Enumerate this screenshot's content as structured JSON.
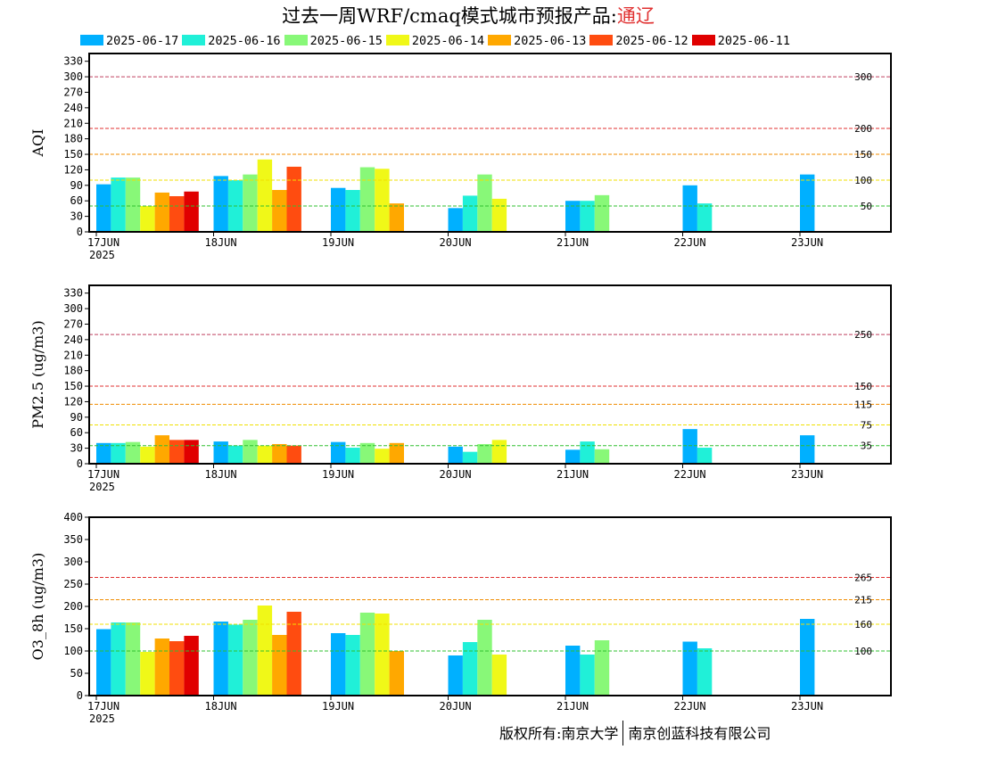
{
  "title": {
    "main": "过去一周WRF/cmaq模式城市预报产品:",
    "city": "通辽"
  },
  "legend": [
    {
      "label": "2025-06-17",
      "color": "#00b0ff"
    },
    {
      "label": "2025-06-16",
      "color": "#20f0d8"
    },
    {
      "label": "2025-06-15",
      "color": "#88f878"
    },
    {
      "label": "2025-06-14",
      "color": "#f0f818"
    },
    {
      "label": "2025-06-13",
      "color": "#ffa800"
    },
    {
      "label": "2025-06-12",
      "color": "#ff4c10"
    },
    {
      "label": "2025-06-11",
      "color": "#e00000"
    }
  ],
  "footer": {
    "left": "版权所有:南京大学",
    "right": "南京创蓝科技有限公司"
  },
  "chart_data": [
    {
      "type": "bar",
      "ylabel": "AQI",
      "ylim": [
        0,
        345
      ],
      "yticks": [
        0,
        30,
        60,
        90,
        120,
        150,
        180,
        210,
        240,
        270,
        300,
        330
      ],
      "categories": [
        "17JUN",
        "18JUN",
        "19JUN",
        "20JUN",
        "21JUN",
        "22JUN",
        "23JUN"
      ],
      "year_label": "2025",
      "thresholds": [
        {
          "value": 300,
          "label": "300",
          "color": "#c04060"
        },
        {
          "value": 200,
          "label": "200",
          "color": "#e03030"
        },
        {
          "value": 150,
          "label": "150",
          "color": "#f08c00"
        },
        {
          "value": 100,
          "label": "100",
          "color": "#f0e000"
        },
        {
          "value": 50,
          "label": "50",
          "color": "#30c030"
        }
      ],
      "series": [
        {
          "values": [
            92,
            108,
            85,
            46,
            60,
            90,
            111
          ]
        },
        {
          "values": [
            105,
            100,
            81,
            70,
            60,
            55,
            null
          ]
        },
        {
          "values": [
            105,
            111,
            125,
            111,
            71,
            null,
            null
          ]
        },
        {
          "values": [
            50,
            140,
            122,
            64,
            null,
            null,
            null
          ]
        },
        {
          "values": [
            76,
            81,
            55,
            null,
            null,
            null,
            null
          ]
        },
        {
          "values": [
            69,
            126,
            null,
            null,
            null,
            null,
            null
          ]
        },
        {
          "values": [
            78,
            null,
            null,
            null,
            null,
            null,
            null
          ]
        }
      ]
    },
    {
      "type": "bar",
      "ylabel": "PM2.5 (ug/m3)",
      "ylim": [
        0,
        345
      ],
      "yticks": [
        0,
        30,
        60,
        90,
        120,
        150,
        180,
        210,
        240,
        270,
        300,
        330
      ],
      "categories": [
        "17JUN",
        "18JUN",
        "19JUN",
        "20JUN",
        "21JUN",
        "22JUN",
        "23JUN"
      ],
      "year_label": "2025",
      "thresholds": [
        {
          "value": 250,
          "label": "250",
          "color": "#c04060"
        },
        {
          "value": 150,
          "label": "150",
          "color": "#e03030"
        },
        {
          "value": 115,
          "label": "115",
          "color": "#f08c00"
        },
        {
          "value": 75,
          "label": "75",
          "color": "#f0e000"
        },
        {
          "value": 35,
          "label": "35",
          "color": "#30c030"
        }
      ],
      "series": [
        {
          "values": [
            40,
            43,
            42,
            33,
            27,
            67,
            55
          ]
        },
        {
          "values": [
            40,
            35,
            31,
            23,
            43,
            31,
            null
          ]
        },
        {
          "values": [
            42,
            46,
            40,
            38,
            28,
            null,
            null
          ]
        },
        {
          "values": [
            33,
            35,
            29,
            46,
            null,
            null,
            null
          ]
        },
        {
          "values": [
            55,
            38,
            40,
            null,
            null,
            null,
            null
          ]
        },
        {
          "values": [
            46,
            35,
            null,
            null,
            null,
            null,
            null
          ]
        },
        {
          "values": [
            46,
            null,
            null,
            null,
            null,
            null,
            null
          ]
        }
      ]
    },
    {
      "type": "bar",
      "ylabel": "O3_8h (ug/m3)",
      "ylim": [
        0,
        400
      ],
      "yticks": [
        0,
        50,
        100,
        150,
        200,
        250,
        300,
        350,
        400
      ],
      "categories": [
        "17JUN",
        "18JUN",
        "19JUN",
        "20JUN",
        "21JUN",
        "22JUN",
        "23JUN"
      ],
      "year_label": "2025",
      "thresholds": [
        {
          "value": 265,
          "label": "265",
          "color": "#e03030"
        },
        {
          "value": 215,
          "label": "215",
          "color": "#f08c00"
        },
        {
          "value": 160,
          "label": "160",
          "color": "#f0e000"
        },
        {
          "value": 100,
          "label": "100",
          "color": "#30c030"
        }
      ],
      "series": [
        {
          "values": [
            149,
            166,
            140,
            90,
            112,
            121,
            172
          ]
        },
        {
          "values": [
            164,
            159,
            136,
            120,
            92,
            106,
            null
          ]
        },
        {
          "values": [
            164,
            170,
            186,
            170,
            124,
            null,
            null
          ]
        },
        {
          "values": [
            98,
            202,
            184,
            92,
            null,
            null,
            null
          ]
        },
        {
          "values": [
            128,
            136,
            100,
            null,
            null,
            null,
            null
          ]
        },
        {
          "values": [
            122,
            188,
            null,
            null,
            null,
            null,
            null
          ]
        },
        {
          "values": [
            134,
            null,
            null,
            null,
            null,
            null,
            null
          ]
        }
      ]
    }
  ]
}
